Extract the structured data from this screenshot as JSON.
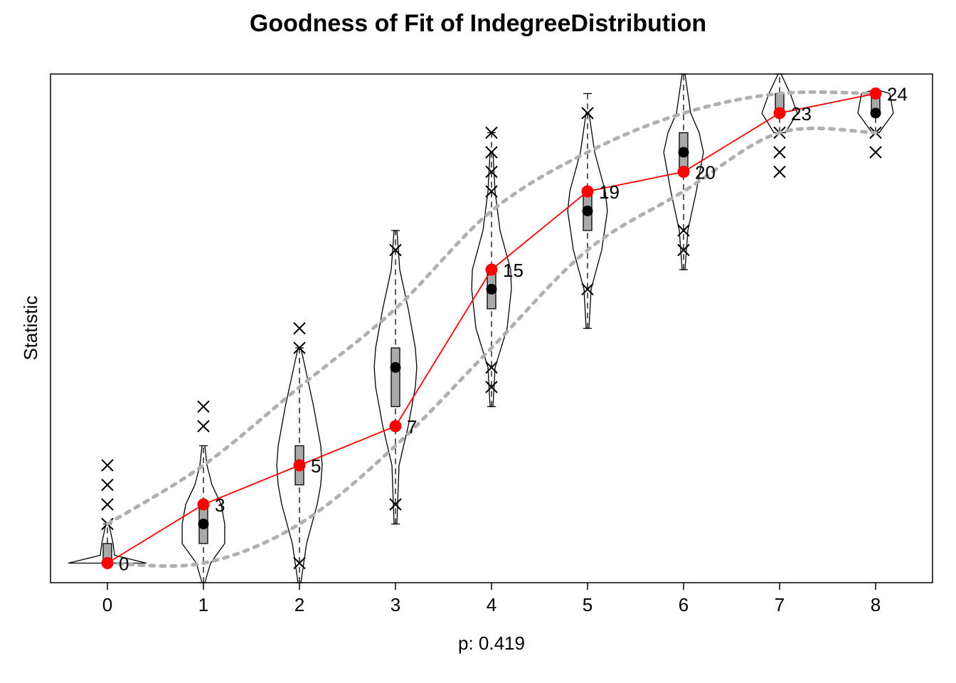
{
  "chart_data": {
    "type": "violin",
    "title": "Goodness of Fit of IndegreeDistribution",
    "xlabel": "p: 0.419",
    "ylabel": "Statistic",
    "categories": [
      "0",
      "1",
      "2",
      "3",
      "4",
      "5",
      "6",
      "7",
      "8"
    ],
    "ylim": [
      -1,
      25
    ],
    "grid": false,
    "legend": "none",
    "series": [
      {
        "type": "observed",
        "values": [
          0,
          3,
          5,
          7,
          15,
          19,
          20,
          23,
          24
        ],
        "labels": [
          "0",
          "3",
          "5",
          "7",
          "15",
          "19",
          "20",
          "23",
          "24"
        ]
      },
      {
        "type": "simulated_mean",
        "values": [
          0,
          2,
          5,
          10,
          14,
          18,
          21,
          23,
          23
        ]
      },
      {
        "type": "band_upper",
        "values": [
          2,
          5,
          9,
          13,
          18,
          21,
          23,
          24,
          24
        ]
      },
      {
        "type": "band_lower",
        "values": [
          0,
          0,
          2,
          6,
          11,
          16,
          19,
          22,
          22
        ]
      }
    ],
    "distributions": [
      {
        "x": 0,
        "whisker": [
          0,
          2
        ],
        "box": [
          0,
          1
        ],
        "violin": [
          [
            0,
            0.55
          ],
          [
            0.4,
            0.1
          ],
          [
            1,
            0.08
          ],
          [
            2,
            0.02
          ]
        ],
        "outliers": [
          2,
          3,
          4,
          5
        ]
      },
      {
        "x": 1,
        "whisker": [
          -1,
          6
        ],
        "box": [
          1,
          3
        ],
        "violin": [
          [
            -1,
            0.02
          ],
          [
            0,
            0.1
          ],
          [
            1,
            0.3
          ],
          [
            2,
            0.3
          ],
          [
            3,
            0.25
          ],
          [
            4,
            0.12
          ],
          [
            5,
            0.05
          ],
          [
            6,
            0.02
          ]
        ],
        "outliers": [
          7,
          8
        ]
      },
      {
        "x": 2,
        "whisker": [
          -1,
          11
        ],
        "box": [
          4,
          6
        ],
        "violin": [
          [
            -1,
            0.02
          ],
          [
            1,
            0.1
          ],
          [
            3,
            0.25
          ],
          [
            4,
            0.3
          ],
          [
            5,
            0.32
          ],
          [
            6,
            0.3
          ],
          [
            8,
            0.2
          ],
          [
            10,
            0.08
          ],
          [
            11,
            0.02
          ]
        ],
        "outliers": [
          0,
          11,
          12
        ]
      },
      {
        "x": 3,
        "whisker": [
          2,
          17
        ],
        "box": [
          8,
          11
        ],
        "violin": [
          [
            2,
            0.02
          ],
          [
            5,
            0.05
          ],
          [
            7,
            0.18
          ],
          [
            9,
            0.28
          ],
          [
            10,
            0.3
          ],
          [
            11,
            0.28
          ],
          [
            13,
            0.18
          ],
          [
            15,
            0.06
          ],
          [
            17,
            0.02
          ]
        ],
        "outliers": [
          3,
          16
        ]
      },
      {
        "x": 4,
        "whisker": [
          8,
          22
        ],
        "box": [
          13,
          15
        ],
        "violin": [
          [
            8,
            0.02
          ],
          [
            10,
            0.05
          ],
          [
            12,
            0.22
          ],
          [
            14,
            0.28
          ],
          [
            15,
            0.27
          ],
          [
            17,
            0.12
          ],
          [
            19,
            0.05
          ],
          [
            21,
            0.02
          ]
        ],
        "outliers": [
          9,
          10,
          19,
          20,
          21,
          22
        ]
      },
      {
        "x": 5,
        "whisker": [
          12,
          24
        ],
        "box": [
          17,
          19
        ],
        "violin": [
          [
            12,
            0.02
          ],
          [
            14,
            0.05
          ],
          [
            16,
            0.2
          ],
          [
            18,
            0.28
          ],
          [
            19,
            0.25
          ],
          [
            21,
            0.1
          ],
          [
            23,
            0.02
          ]
        ],
        "outliers": [
          14,
          23
        ]
      },
      {
        "x": 6,
        "whisker": [
          15,
          25
        ],
        "box": [
          20,
          22
        ],
        "violin": [
          [
            15,
            0.02
          ],
          [
            17,
            0.06
          ],
          [
            19,
            0.18
          ],
          [
            21,
            0.28
          ],
          [
            22,
            0.22
          ],
          [
            23,
            0.1
          ],
          [
            25,
            0.02
          ]
        ],
        "outliers": [
          16,
          17
        ]
      },
      {
        "x": 7,
        "whisker": [
          22,
          25
        ],
        "box": [
          23,
          24
        ],
        "violin": [
          [
            22,
            0.08
          ],
          [
            23,
            0.25
          ],
          [
            23.5,
            0.2
          ],
          [
            24,
            0.15
          ],
          [
            25,
            0.02
          ]
        ],
        "outliers": [
          20,
          21,
          22
        ]
      },
      {
        "x": 8,
        "whisker": [
          22,
          24
        ],
        "box": [
          23,
          24
        ],
        "violin": [
          [
            22,
            0.05
          ],
          [
            23,
            0.25
          ],
          [
            24,
            0.2
          ],
          [
            24.2,
            0.02
          ]
        ],
        "outliers": [
          21,
          22
        ]
      }
    ]
  }
}
